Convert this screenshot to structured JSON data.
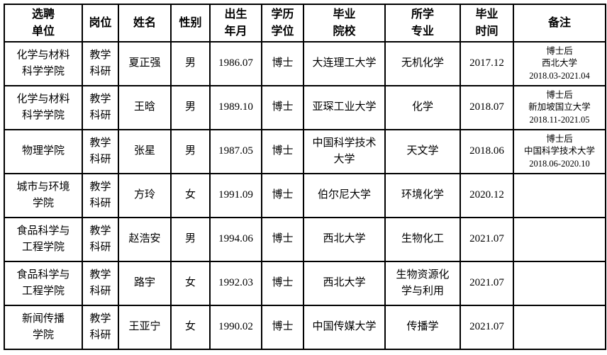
{
  "table": {
    "headers": {
      "unit": "选聘\n单位",
      "post": "岗位",
      "name": "姓名",
      "gender": "性别",
      "birth": "出生\n年月",
      "degree": "学历\n学位",
      "school": "毕业\n院校",
      "major": "所学\n专业",
      "grad": "毕业\n时间",
      "remark": "备注"
    },
    "rows": [
      {
        "unit": "化学与材料\n科学学院",
        "post": "教学\n科研",
        "name": "夏正强",
        "gender": "男",
        "birth": "1986.07",
        "degree": "博士",
        "school": "大连理工大学",
        "major": "无机化学",
        "grad": "2017.12",
        "remark": "博士后\n西北大学\n2018.03-2021.04"
      },
      {
        "unit": "化学与材料\n科学学院",
        "post": "教学\n科研",
        "name": "王晗",
        "gender": "男",
        "birth": "1989.10",
        "degree": "博士",
        "school": "亚琛工业大学",
        "major": "化学",
        "grad": "2018.07",
        "remark": "博士后\n新加坡国立大学\n2018.11-2021.05"
      },
      {
        "unit": "物理学院",
        "post": "教学\n科研",
        "name": "张星",
        "gender": "男",
        "birth": "1987.05",
        "degree": "博士",
        "school": "中国科学技术\n大学",
        "major": "天文学",
        "grad": "2018.06",
        "remark": "博士后\n中国科学技术大学\n2018.06-2020.10"
      },
      {
        "unit": "城市与环境\n学院",
        "post": "教学\n科研",
        "name": "方玲",
        "gender": "女",
        "birth": "1991.09",
        "degree": "博士",
        "school": "伯尔尼大学",
        "major": "环境化学",
        "grad": "2020.12",
        "remark": ""
      },
      {
        "unit": "食品科学与\n工程学院",
        "post": "教学\n科研",
        "name": "赵浩安",
        "gender": "男",
        "birth": "1994.06",
        "degree": "博士",
        "school": "西北大学",
        "major": "生物化工",
        "grad": "2021.07",
        "remark": ""
      },
      {
        "unit": "食品科学与\n工程学院",
        "post": "教学\n科研",
        "name": "路宇",
        "gender": "女",
        "birth": "1992.03",
        "degree": "博士",
        "school": "西北大学",
        "major": "生物资源化\n学与利用",
        "grad": "2021.07",
        "remark": ""
      },
      {
        "unit": "新闻传播\n学院",
        "post": "教学\n科研",
        "name": "王亚宁",
        "gender": "女",
        "birth": "1990.02",
        "degree": "博士",
        "school": "中国传媒大学",
        "major": "传播学",
        "grad": "2021.07",
        "remark": ""
      }
    ]
  }
}
